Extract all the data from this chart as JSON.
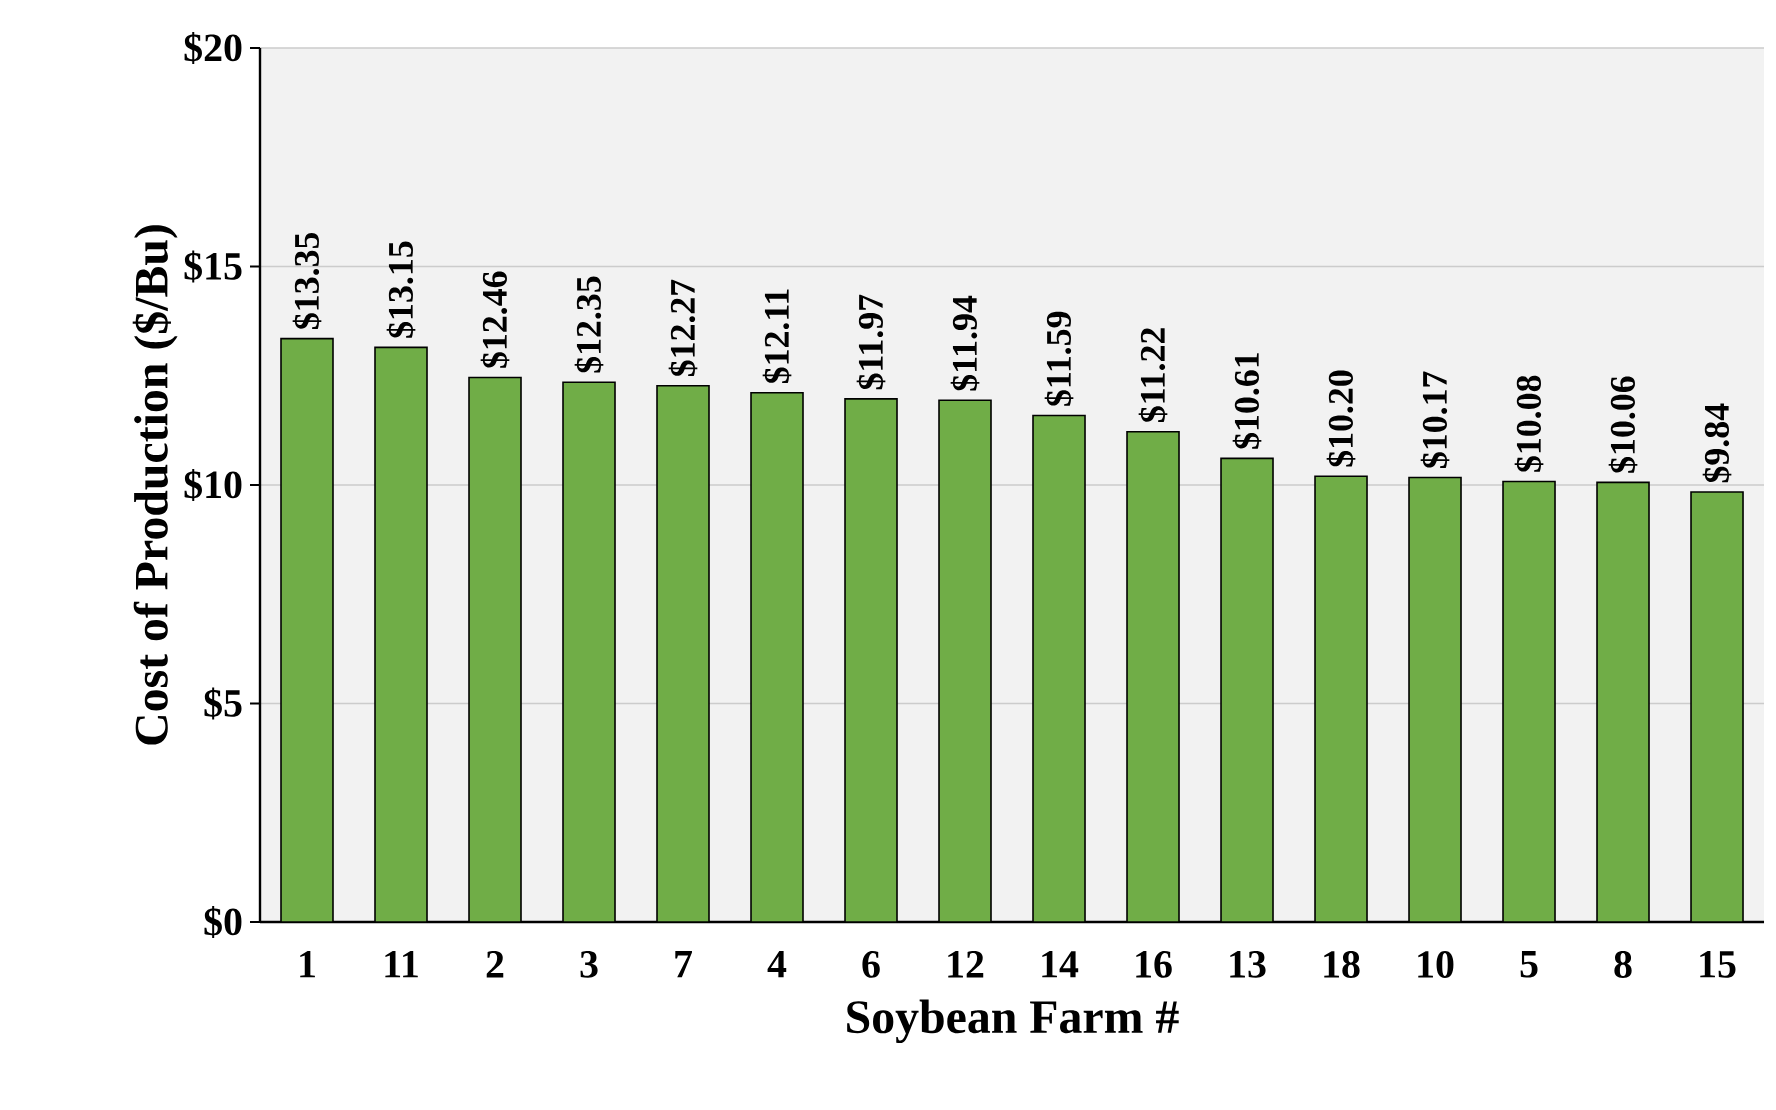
{
  "chart_data": {
    "type": "bar",
    "xlabel": "Soybean Farm #",
    "ylabel": "Cost of Production ($/Bu)",
    "categories": [
      "1",
      "11",
      "2",
      "3",
      "7",
      "4",
      "6",
      "12",
      "14",
      "16",
      "13",
      "18",
      "10",
      "5",
      "8",
      "15"
    ],
    "values": [
      13.35,
      13.15,
      12.46,
      12.35,
      12.27,
      12.11,
      11.97,
      11.94,
      11.59,
      11.22,
      10.61,
      10.2,
      10.17,
      10.08,
      10.06,
      9.84
    ],
    "value_labels": [
      "$13.35",
      "$13.15",
      "$12.46",
      "$12.35",
      "$12.27",
      "$12.11",
      "$11.97",
      "$11.94",
      "$11.59",
      "$11.22",
      "$10.61",
      "$10.20",
      "$10.17",
      "$10.08",
      "$10.06",
      "$9.84"
    ],
    "color": "#70ad47",
    "ylim": [
      0,
      20
    ],
    "yticks": [
      {
        "value": 0,
        "label": "$0"
      },
      {
        "value": 5,
        "label": "$5"
      },
      {
        "value": 10,
        "label": "$10"
      },
      {
        "value": 15,
        "label": "$15"
      },
      {
        "value": 20,
        "label": "$20"
      }
    ],
    "grid": "y"
  }
}
